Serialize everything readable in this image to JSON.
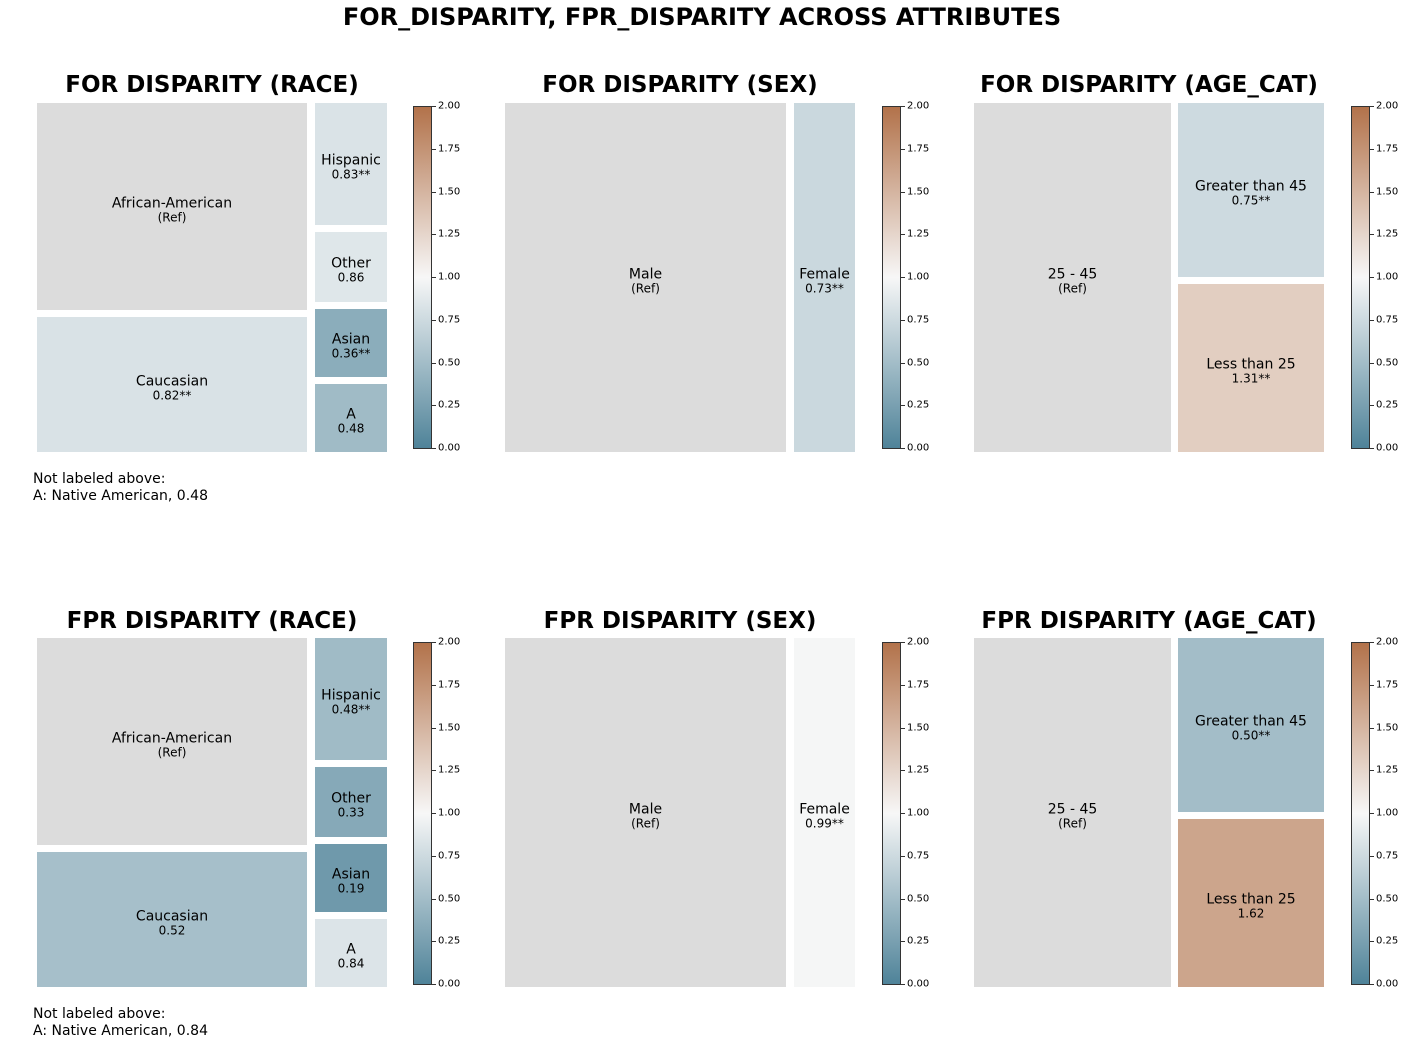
{
  "suptitle": "FOR_DISPARITY, FPR_DISPARITY ACROSS ATTRIBUTES",
  "colorbar": {
    "ticks": [
      "0.00",
      "0.25",
      "0.50",
      "0.75",
      "1.00",
      "1.25",
      "1.50",
      "1.75",
      "2.00"
    ],
    "vmin": 0,
    "vmax": 2,
    "low_color": "#4f8399",
    "mid_color": "#f7f7f7",
    "high_color": "#b2724a",
    "ref_color": "#dcdcdc"
  },
  "chart_data": [
    {
      "type": "treemap",
      "title": "FOR DISPARITY (RACE)",
      "groups": [
        {
          "name": "African-American",
          "label": "(Ref)",
          "value": 1.0,
          "is_ref": true
        },
        {
          "name": "Caucasian",
          "label": "0.82**",
          "value": 0.82
        },
        {
          "name": "Hispanic",
          "label": "0.83**",
          "value": 0.83
        },
        {
          "name": "Other",
          "label": "0.86",
          "value": 0.86
        },
        {
          "name": "Asian",
          "label": "0.36**",
          "value": 0.36
        },
        {
          "name": "A",
          "label": "0.48",
          "value": 0.48
        }
      ],
      "note": [
        "Not labeled above:",
        "A: Native American, 0.48"
      ]
    },
    {
      "type": "treemap",
      "title": "FOR DISPARITY (SEX)",
      "groups": [
        {
          "name": "Male",
          "label": "(Ref)",
          "value": 1.0,
          "is_ref": true
        },
        {
          "name": "Female",
          "label": "0.73**",
          "value": 0.73
        }
      ]
    },
    {
      "type": "treemap",
      "title": "FOR DISPARITY (AGE_CAT)",
      "groups": [
        {
          "name": "25 - 45",
          "label": "(Ref)",
          "value": 1.0,
          "is_ref": true
        },
        {
          "name": "Greater than 45",
          "label": "0.75**",
          "value": 0.75
        },
        {
          "name": "Less than 25",
          "label": "1.31**",
          "value": 1.31
        }
      ]
    },
    {
      "type": "treemap",
      "title": "FPR DISPARITY (RACE)",
      "groups": [
        {
          "name": "African-American",
          "label": "(Ref)",
          "value": 1.0,
          "is_ref": true
        },
        {
          "name": "Caucasian",
          "label": "0.52",
          "value": 0.52
        },
        {
          "name": "Hispanic",
          "label": "0.48**",
          "value": 0.48
        },
        {
          "name": "Other",
          "label": "0.33",
          "value": 0.33
        },
        {
          "name": "Asian",
          "label": "0.19",
          "value": 0.19
        },
        {
          "name": "A",
          "label": "0.84",
          "value": 0.84
        }
      ],
      "note": [
        "Not labeled above:",
        "A: Native American, 0.84"
      ]
    },
    {
      "type": "treemap",
      "title": "FPR DISPARITY (SEX)",
      "groups": [
        {
          "name": "Male",
          "label": "(Ref)",
          "value": 1.0,
          "is_ref": true
        },
        {
          "name": "Female",
          "label": "0.99**",
          "value": 0.99
        }
      ]
    },
    {
      "type": "treemap",
      "title": "FPR DISPARITY (AGE_CAT)",
      "groups": [
        {
          "name": "25 - 45",
          "label": "(Ref)",
          "value": 1.0,
          "is_ref": true
        },
        {
          "name": "Greater than 45",
          "label": "0.50**",
          "value": 0.5
        },
        {
          "name": "Less than 25",
          "label": "1.62",
          "value": 1.62
        }
      ]
    }
  ]
}
